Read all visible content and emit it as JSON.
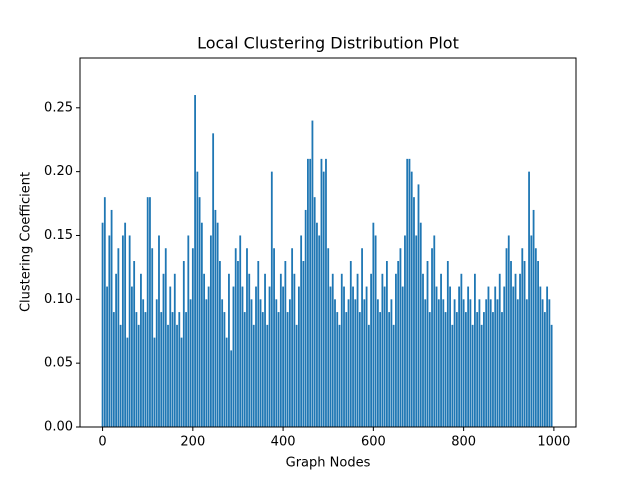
{
  "chart_data": {
    "type": "bar",
    "title": "Local Clustering Distribution Plot",
    "x_label": "Graph Nodes",
    "y_label": "Clustering Coefficient",
    "color": "#1f77b4",
    "x": [
      0,
      5,
      10,
      15,
      20,
      25,
      30,
      35,
      40,
      45,
      50,
      55,
      60,
      65,
      70,
      75,
      80,
      85,
      90,
      95,
      100,
      105,
      110,
      115,
      120,
      125,
      130,
      135,
      140,
      145,
      150,
      155,
      160,
      165,
      170,
      175,
      180,
      185,
      190,
      195,
      200,
      205,
      210,
      215,
      220,
      225,
      230,
      235,
      240,
      245,
      250,
      255,
      260,
      265,
      270,
      275,
      280,
      285,
      290,
      295,
      300,
      305,
      310,
      315,
      320,
      325,
      330,
      335,
      340,
      345,
      350,
      355,
      360,
      365,
      370,
      375,
      380,
      385,
      390,
      395,
      400,
      405,
      410,
      415,
      420,
      425,
      430,
      435,
      440,
      445,
      450,
      455,
      460,
      465,
      470,
      475,
      480,
      485,
      490,
      495,
      500,
      505,
      510,
      515,
      520,
      525,
      530,
      535,
      540,
      545,
      550,
      555,
      560,
      565,
      570,
      575,
      580,
      585,
      590,
      595,
      600,
      605,
      610,
      615,
      620,
      625,
      630,
      635,
      640,
      645,
      650,
      655,
      660,
      665,
      670,
      675,
      680,
      685,
      690,
      695,
      700,
      705,
      710,
      715,
      720,
      725,
      730,
      735,
      740,
      745,
      750,
      755,
      760,
      765,
      770,
      775,
      780,
      785,
      790,
      795,
      800,
      805,
      810,
      815,
      820,
      825,
      830,
      835,
      840,
      845,
      850,
      855,
      860,
      865,
      870,
      875,
      880,
      885,
      890,
      895,
      900,
      905,
      910,
      915,
      920,
      925,
      930,
      935,
      940,
      945,
      950,
      955,
      960,
      965,
      970,
      975,
      980,
      985,
      990,
      995
    ],
    "values": [
      0.16,
      0.18,
      0.11,
      0.15,
      0.17,
      0.09,
      0.12,
      0.14,
      0.08,
      0.15,
      0.16,
      0.07,
      0.15,
      0.11,
      0.13,
      0.09,
      0.08,
      0.12,
      0.1,
      0.09,
      0.18,
      0.18,
      0.14,
      0.07,
      0.1,
      0.15,
      0.09,
      0.12,
      0.14,
      0.08,
      0.11,
      0.09,
      0.12,
      0.08,
      0.09,
      0.07,
      0.13,
      0.09,
      0.15,
      0.1,
      0.14,
      0.26,
      0.2,
      0.18,
      0.16,
      0.12,
      0.1,
      0.11,
      0.15,
      0.23,
      0.17,
      0.16,
      0.13,
      0.1,
      0.09,
      0.07,
      0.12,
      0.06,
      0.11,
      0.14,
      0.13,
      0.15,
      0.11,
      0.09,
      0.14,
      0.12,
      0.1,
      0.08,
      0.11,
      0.13,
      0.1,
      0.09,
      0.12,
      0.08,
      0.11,
      0.2,
      0.14,
      0.1,
      0.09,
      0.12,
      0.11,
      0.13,
      0.09,
      0.1,
      0.14,
      0.12,
      0.08,
      0.11,
      0.15,
      0.13,
      0.17,
      0.21,
      0.21,
      0.24,
      0.18,
      0.16,
      0.15,
      0.21,
      0.2,
      0.21,
      0.14,
      0.11,
      0.12,
      0.1,
      0.09,
      0.08,
      0.12,
      0.11,
      0.09,
      0.1,
      0.13,
      0.11,
      0.1,
      0.12,
      0.09,
      0.14,
      0.1,
      0.11,
      0.08,
      0.12,
      0.16,
      0.15,
      0.1,
      0.09,
      0.12,
      0.11,
      0.13,
      0.09,
      0.1,
      0.08,
      0.12,
      0.13,
      0.14,
      0.11,
      0.15,
      0.21,
      0.21,
      0.2,
      0.18,
      0.15,
      0.19,
      0.16,
      0.12,
      0.1,
      0.13,
      0.09,
      0.14,
      0.15,
      0.11,
      0.1,
      0.12,
      0.1,
      0.09,
      0.13,
      0.11,
      0.08,
      0.1,
      0.09,
      0.11,
      0.12,
      0.1,
      0.09,
      0.11,
      0.1,
      0.08,
      0.12,
      0.09,
      0.1,
      0.08,
      0.09,
      0.1,
      0.11,
      0.1,
      0.09,
      0.11,
      0.1,
      0.12,
      0.09,
      0.11,
      0.14,
      0.15,
      0.13,
      0.11,
      0.12,
      0.1,
      0.12,
      0.14,
      0.13,
      0.1,
      0.2,
      0.15,
      0.17,
      0.14,
      0.13,
      0.11,
      0.1,
      0.09,
      0.11,
      0.1,
      0.08
    ],
    "xlim": [
      -50,
      1049
    ],
    "xticks": [
      0,
      200,
      400,
      600,
      800,
      1000
    ],
    "ylim": [
      0,
      0.289
    ],
    "yticks": [
      {
        "value": 0,
        "label": "0.00"
      },
      0.05,
      {
        "value": 0.1,
        "label": "0.10"
      },
      0.15,
      {
        "value": 0.2,
        "label": "0.20"
      },
      0.25
    ],
    "grid": false
  }
}
